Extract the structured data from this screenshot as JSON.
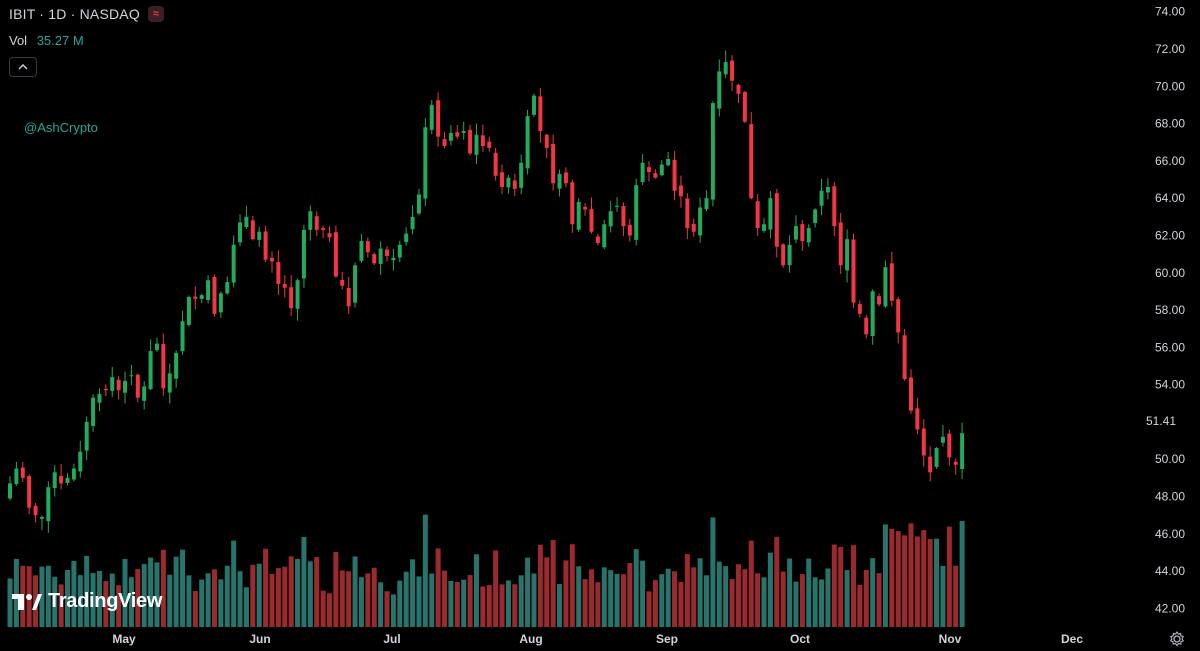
{
  "header": {
    "ticker": "IBIT · 1D · NASDAQ",
    "badge_icon": "≈",
    "volume_label": "Vol",
    "volume_value": "35.27 M"
  },
  "watermark": "@AshCrypto",
  "logo_text": "TradingView",
  "last_price_label": "51.41",
  "colors": {
    "up": "#22ab5a",
    "down": "#f23645",
    "vol_up": "#26746b",
    "vol_down": "#9b2a2f",
    "background": "#000000",
    "axis_text": "#d1d4dc"
  },
  "chart_data": {
    "type": "candlestick",
    "x_ticks": [
      "May",
      "Jun",
      "Jul",
      "Aug",
      "Sep",
      "Oct",
      "Nov",
      "Dec"
    ],
    "y_ticks": [
      "42.00",
      "44.00",
      "46.00",
      "48.00",
      "50.00",
      "52.00",
      "54.00",
      "56.00",
      "58.00",
      "60.00",
      "62.00",
      "64.00",
      "66.00",
      "68.00",
      "70.00",
      "72.00",
      "74.00"
    ],
    "ylim": [
      41,
      74.2
    ],
    "grid": false,
    "closes": [
      48.7,
      49.5,
      49.0,
      47.4,
      47.0,
      46.9,
      48.5,
      49.3,
      48.7,
      49.0,
      49.5,
      50.4,
      52.0,
      53.3,
      53.5,
      53.7,
      54.4,
      53.7,
      54.2,
      54.5,
      53.3,
      53.9,
      55.8,
      56.2,
      53.8,
      54.6,
      55.7,
      57.4,
      58.7,
      58.6,
      58.8,
      59.6,
      57.8,
      58.9,
      59.5,
      61.5,
      62.7,
      63.0,
      61.8,
      62.2,
      60.7,
      60.6,
      59.4,
      59.2,
      58.1,
      59.6,
      62.3,
      63.3,
      62.3,
      62.3,
      61.9,
      59.8,
      59.3,
      58.2,
      60.4,
      61.7,
      61.1,
      60.5,
      61.3,
      60.9,
      60.8,
      61.5,
      62.1,
      63.0,
      64.2,
      67.8,
      69.0,
      67.3,
      66.8,
      67.5,
      67.3,
      67.6,
      66.4,
      67.4,
      66.8,
      66.7,
      65.2,
      64.6,
      65.1,
      64.5,
      65.9,
      68.4,
      69.5,
      67.6,
      66.7,
      64.8,
      65.3,
      64.8,
      62.6,
      63.8,
      63.4,
      62.2,
      61.6,
      62.6,
      63.3,
      63.6,
      62.5,
      62.0,
      64.7,
      65.9,
      65.4,
      65.1,
      65.8,
      66.1,
      64.4,
      64.1,
      62.4,
      62.2,
      63.5,
      64.0,
      69.1,
      70.8,
      71.3,
      70.3,
      69.6,
      68.1,
      64.0,
      62.4,
      62.6,
      64.0,
      61.4,
      60.4,
      61.5,
      62.5,
      61.7,
      62.4,
      63.4,
      64.4,
      64.6,
      62.5,
      60.4,
      61.8,
      58.4,
      57.8,
      56.7,
      59.0,
      58.3,
      60.3,
      58.5,
      56.8,
      54.3,
      52.6,
      51.6,
      50.2,
      49.3,
      50.6,
      51.2,
      50.1,
      49.7,
      51.4
    ],
    "x_range": [
      "2024-04-22",
      "2024-12-02"
    ]
  }
}
